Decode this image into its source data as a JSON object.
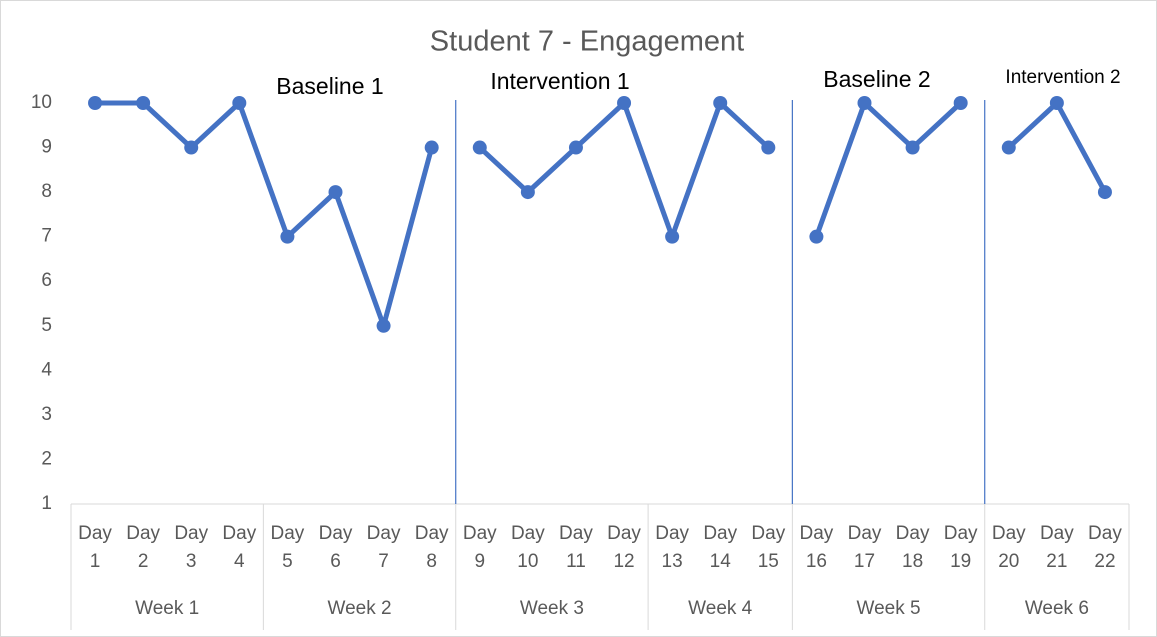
{
  "chart_data": {
    "type": "line",
    "title": "Student 7 - Engagement",
    "category_groups": [
      {
        "label": "Week 1",
        "categories": [
          "Day 1",
          "Day 2",
          "Day 3",
          "Day 4"
        ]
      },
      {
        "label": "Week 2",
        "categories": [
          "Day 5",
          "Day 6",
          "Day 7",
          "Day 8"
        ]
      },
      {
        "label": "Week 3",
        "categories": [
          "Day 9",
          "Day 10",
          "Day 11",
          "Day 12"
        ]
      },
      {
        "label": "Week 4",
        "categories": [
          "Day 13",
          "Day 14",
          "Day 15"
        ]
      },
      {
        "label": "Week 5",
        "categories": [
          "Day 16",
          "Day 17",
          "Day 18",
          "Day 19"
        ]
      },
      {
        "label": "Week 6",
        "categories": [
          "Day 20",
          "Day 21",
          "Day 22"
        ]
      }
    ],
    "series": [
      {
        "name": "Baseline 1",
        "color": "#4472c4",
        "values": [
          10,
          10,
          9,
          10,
          7,
          8,
          5,
          9,
          null,
          null,
          null,
          null,
          null,
          null,
          null,
          null,
          null,
          null,
          null,
          null,
          null,
          null
        ]
      },
      {
        "name": "Intervention 1",
        "color": "#4472c4",
        "values": [
          null,
          null,
          null,
          null,
          null,
          null,
          null,
          null,
          9,
          8,
          9,
          10,
          7,
          10,
          9,
          null,
          null,
          null,
          null,
          null,
          null,
          null
        ]
      },
      {
        "name": "Baseline 2",
        "color": "#4472c4",
        "values": [
          null,
          null,
          null,
          null,
          null,
          null,
          null,
          null,
          null,
          null,
          null,
          null,
          null,
          null,
          null,
          7,
          10,
          9,
          10,
          null,
          null,
          null
        ]
      },
      {
        "name": "Intervention 2",
        "color": "#4472c4",
        "values": [
          null,
          null,
          null,
          null,
          null,
          null,
          null,
          null,
          null,
          null,
          null,
          null,
          null,
          null,
          null,
          null,
          null,
          null,
          null,
          9,
          10,
          8
        ]
      }
    ],
    "ylim": [
      1,
      10
    ],
    "yticks": [
      1,
      2,
      3,
      4,
      5,
      6,
      7,
      8,
      9,
      10
    ],
    "grid": false
  }
}
